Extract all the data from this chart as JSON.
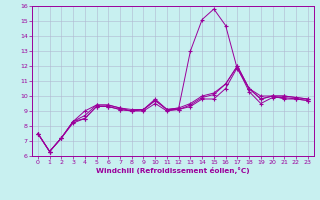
{
  "xlabel": "Windchill (Refroidissement éolien,°C)",
  "bg_color": "#c8f0f0",
  "line_color": "#9b009b",
  "grid_color": "#b0b8d0",
  "xlim": [
    -0.5,
    23.5
  ],
  "ylim": [
    6,
    16
  ],
  "xticks": [
    0,
    1,
    2,
    3,
    4,
    5,
    6,
    7,
    8,
    9,
    10,
    11,
    12,
    13,
    14,
    15,
    16,
    17,
    18,
    19,
    20,
    21,
    22,
    23
  ],
  "yticks": [
    6,
    7,
    8,
    9,
    10,
    11,
    12,
    13,
    14,
    15,
    16
  ],
  "lines": [
    {
      "x": [
        0,
        1,
        2,
        3,
        4,
        5,
        6,
        7,
        8,
        9,
        10,
        11,
        12,
        13,
        14,
        15,
        16,
        17,
        18,
        19,
        20,
        21,
        22,
        23
      ],
      "y": [
        7.5,
        6.3,
        7.2,
        8.3,
        9.0,
        9.4,
        9.4,
        9.2,
        9.0,
        9.1,
        9.8,
        9.1,
        9.2,
        13.0,
        15.1,
        15.8,
        14.7,
        11.8,
        10.5,
        10.0,
        10.0,
        9.8,
        9.8,
        9.7
      ],
      "ls": "-"
    },
    {
      "x": [
        0,
        1,
        2,
        3,
        4,
        5,
        6,
        7,
        8,
        9,
        10,
        11,
        12,
        13,
        14,
        15,
        16,
        17,
        18,
        19,
        20,
        21,
        22,
        23
      ],
      "y": [
        7.5,
        6.3,
        7.2,
        8.2,
        8.5,
        9.3,
        9.3,
        9.1,
        9.0,
        9.0,
        9.5,
        9.0,
        9.1,
        9.4,
        9.9,
        10.1,
        10.8,
        12.0,
        10.5,
        9.8,
        10.0,
        10.0,
        9.9,
        9.8
      ],
      "ls": "-"
    },
    {
      "x": [
        0,
        1,
        2,
        3,
        4,
        5,
        6,
        7,
        8,
        9,
        10,
        11,
        12,
        13,
        14,
        15,
        16,
        17,
        18,
        19,
        20,
        21,
        22,
        23
      ],
      "y": [
        7.5,
        6.3,
        7.2,
        8.3,
        8.5,
        9.3,
        9.3,
        9.1,
        9.0,
        9.1,
        9.7,
        9.1,
        9.1,
        9.3,
        9.8,
        9.8,
        10.5,
        11.9,
        10.3,
        9.5,
        9.9,
        9.9,
        9.8,
        9.7
      ],
      "ls": "-"
    },
    {
      "x": [
        0,
        1,
        2,
        3,
        4,
        5,
        6,
        7,
        8,
        9,
        10,
        11,
        12,
        13,
        14,
        15,
        16,
        17,
        18,
        19,
        20,
        21,
        22,
        23
      ],
      "y": [
        7.5,
        6.3,
        7.2,
        8.3,
        8.7,
        9.4,
        9.4,
        9.2,
        9.1,
        9.1,
        9.7,
        9.1,
        9.2,
        9.5,
        10.0,
        10.2,
        10.8,
        12.0,
        10.5,
        9.8,
        10.0,
        10.0,
        9.9,
        9.8
      ],
      "ls": "-"
    }
  ]
}
